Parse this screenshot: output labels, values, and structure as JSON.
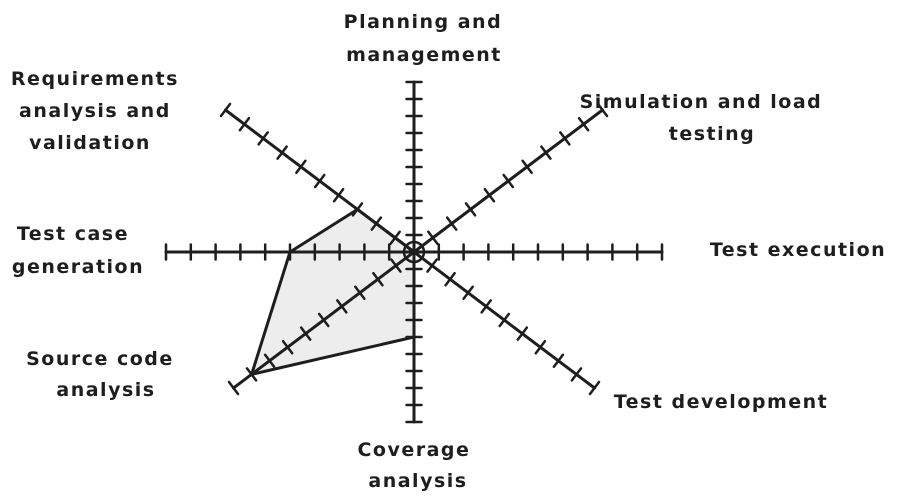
{
  "chart_data": {
    "type": "radar",
    "title": "",
    "tick_count": 10,
    "axes": [
      {
        "key": "planning",
        "label_lines": [
          "Planning and",
          "management"
        ],
        "value": 0
      },
      {
        "key": "simulation",
        "label_lines": [
          "Simulation and load",
          "testing"
        ],
        "value": 0
      },
      {
        "key": "execution",
        "label_lines": [
          "Test execution"
        ],
        "value": 0
      },
      {
        "key": "development",
        "label_lines": [
          "Test development"
        ],
        "value": 0
      },
      {
        "key": "coverage",
        "label_lines": [
          "Coverage",
          "analysis"
        ],
        "value": 5
      },
      {
        "key": "source",
        "label_lines": [
          "Source code",
          "analysis"
        ],
        "value": 9
      },
      {
        "key": "testcase",
        "label_lines": [
          "Test case",
          "generation"
        ],
        "value": 5
      },
      {
        "key": "requirements",
        "label_lines": [
          "Requirements",
          "analysis and",
          "validation"
        ],
        "value": 3
      }
    ],
    "series": [
      {
        "values": [
          0,
          0,
          0,
          0,
          5,
          9,
          5,
          3
        ]
      }
    ],
    "range": [
      0,
      10
    ],
    "colors": {
      "axis": "#1e1e1e",
      "polygon_fill": "#ededed",
      "polygon_stroke": "#1e1e1e"
    }
  }
}
